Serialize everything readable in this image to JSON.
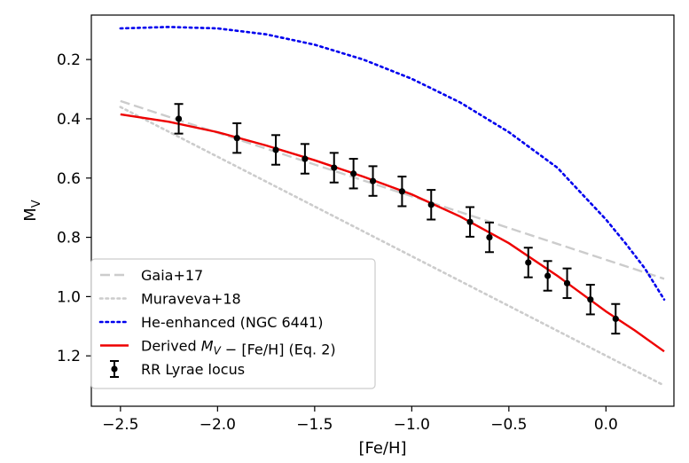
{
  "chart_data": {
    "type": "line",
    "title": "",
    "xlabel": "[Fe/H]",
    "ylabel_main": "M",
    "ylabel_sub": "V",
    "xlim": [
      -2.65,
      0.35
    ],
    "ylim": [
      1.37,
      0.05
    ],
    "y_inverted": true,
    "grid": false,
    "legend_position": "lower-left",
    "x_ticks": [
      {
        "value": -2.5,
        "label": "−2.5"
      },
      {
        "value": -2.0,
        "label": "−2.0"
      },
      {
        "value": -1.5,
        "label": "−1.5"
      },
      {
        "value": -1.0,
        "label": "−1.0"
      },
      {
        "value": -0.5,
        "label": "−0.5"
      },
      {
        "value": 0.0,
        "label": "0.0"
      }
    ],
    "y_ticks": [
      {
        "value": 0.2,
        "label": "0.2"
      },
      {
        "value": 0.4,
        "label": "0.4"
      },
      {
        "value": 0.6,
        "label": "0.6"
      },
      {
        "value": 0.8,
        "label": "0.8"
      },
      {
        "value": 1.0,
        "label": "1.0"
      },
      {
        "value": 1.2,
        "label": "1.2"
      }
    ],
    "series": [
      {
        "name": "Gaia+17",
        "kind": "line",
        "color": "#cccccc",
        "dash": "dashed",
        "x": [
          -2.5,
          0.3
        ],
        "y": [
          0.34,
          0.94
        ]
      },
      {
        "name": "Muraveva+18",
        "kind": "line",
        "color": "#cccccc",
        "dash": "dotted",
        "x": [
          -2.5,
          0.3
        ],
        "y": [
          0.36,
          1.3
        ]
      },
      {
        "name": "He-enhanced (NGC 6441)",
        "kind": "line",
        "color": "#0000ee",
        "dash": "dotted",
        "x": [
          -2.5,
          -2.25,
          -2.0,
          -1.75,
          -1.5,
          -1.25,
          -1.0,
          -0.75,
          -0.5,
          -0.25,
          0.0,
          0.1,
          0.2,
          0.3
        ],
        "y": [
          0.095,
          0.09,
          0.095,
          0.115,
          0.15,
          0.2,
          0.265,
          0.345,
          0.445,
          0.565,
          0.74,
          0.82,
          0.905,
          1.01
        ]
      },
      {
        "name": "Derived M_V − [Fe/H] (Eq. 2)",
        "kind": "line",
        "color": "#ee0000",
        "dash": "solid",
        "x": [
          -2.5,
          -2.25,
          -2.0,
          -1.75,
          -1.5,
          -1.25,
          -1.0,
          -0.75,
          -0.5,
          -0.25,
          0.0,
          0.15,
          0.3
        ],
        "y": [
          0.385,
          0.41,
          0.445,
          0.49,
          0.54,
          0.595,
          0.655,
          0.73,
          0.82,
          0.93,
          1.05,
          1.115,
          1.185
        ]
      },
      {
        "name": "RR Lyrae locus",
        "kind": "errorbar",
        "color": "#000000",
        "points": [
          {
            "x": -2.2,
            "y": 0.4,
            "err": 0.05
          },
          {
            "x": -1.9,
            "y": 0.465,
            "err": 0.05
          },
          {
            "x": -1.7,
            "y": 0.505,
            "err": 0.05
          },
          {
            "x": -1.55,
            "y": 0.535,
            "err": 0.05
          },
          {
            "x": -1.4,
            "y": 0.565,
            "err": 0.05
          },
          {
            "x": -1.3,
            "y": 0.585,
            "err": 0.05
          },
          {
            "x": -1.2,
            "y": 0.61,
            "err": 0.05
          },
          {
            "x": -1.05,
            "y": 0.645,
            "err": 0.05
          },
          {
            "x": -0.9,
            "y": 0.69,
            "err": 0.05
          },
          {
            "x": -0.7,
            "y": 0.748,
            "err": 0.05
          },
          {
            "x": -0.6,
            "y": 0.8,
            "err": 0.05
          },
          {
            "x": -0.4,
            "y": 0.885,
            "err": 0.05
          },
          {
            "x": -0.3,
            "y": 0.93,
            "err": 0.05
          },
          {
            "x": -0.2,
            "y": 0.955,
            "err": 0.05
          },
          {
            "x": -0.08,
            "y": 1.01,
            "err": 0.05
          },
          {
            "x": 0.05,
            "y": 1.075,
            "err": 0.05
          }
        ]
      }
    ],
    "legend": [
      {
        "series": 0,
        "parts": [
          {
            "t": "Gaia+17"
          }
        ]
      },
      {
        "series": 1,
        "parts": [
          {
            "t": "Muraveva+18"
          }
        ]
      },
      {
        "series": 2,
        "parts": [
          {
            "t": "He-enhanced (NGC 6441)"
          }
        ]
      },
      {
        "series": 3,
        "parts": [
          {
            "t": "Derived "
          },
          {
            "t": "M",
            "i": true
          },
          {
            "t": "V",
            "i": true,
            "sub": true
          },
          {
            "t": " − [Fe/H] (Eq. 2)"
          }
        ]
      },
      {
        "series": 4,
        "parts": [
          {
            "t": "RR Lyrae locus"
          }
        ]
      }
    ]
  }
}
